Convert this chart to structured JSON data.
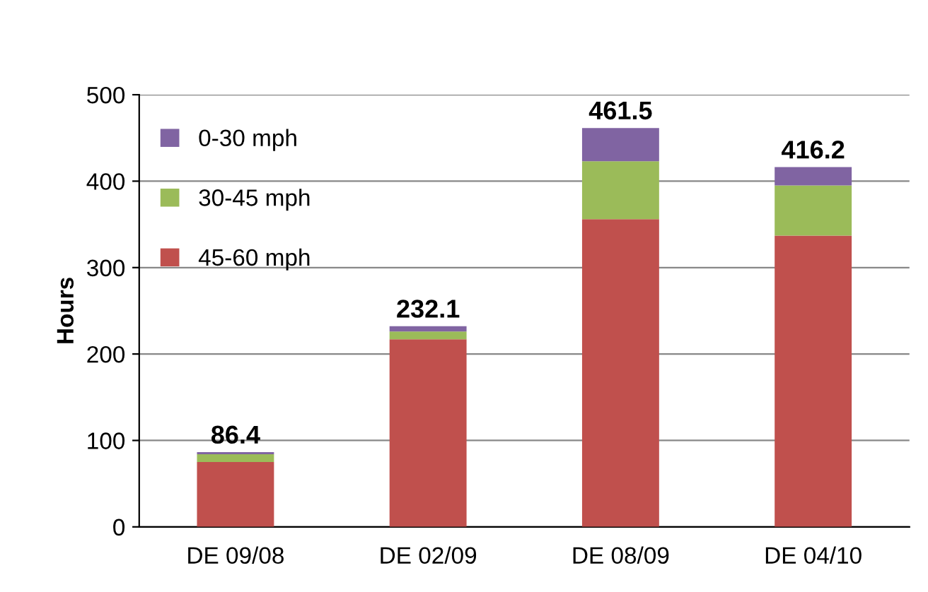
{
  "chart_data": {
    "type": "bar",
    "stacked": true,
    "ylabel": "Hours",
    "categories": [
      "DE 09/08",
      "DE 02/09",
      "DE 08/09",
      "DE 04/10"
    ],
    "series": [
      {
        "name": "45-60 mph",
        "color": "#c0504d",
        "values": [
          75,
          217,
          356,
          337
        ]
      },
      {
        "name": "30-45 mph",
        "color": "#9bbb59",
        "values": [
          9,
          9,
          67,
          58
        ]
      },
      {
        "name": "0-30 mph",
        "color": "#8064a2",
        "values": [
          2.4,
          6.1,
          38.5,
          21.2
        ]
      }
    ],
    "totals": [
      "86.4",
      "232.1",
      "461.5",
      "416.2"
    ],
    "ylim": [
      0,
      500
    ],
    "yticks": [
      0,
      100,
      200,
      300,
      400,
      500
    ],
    "grid": "y",
    "legend": "top left"
  }
}
